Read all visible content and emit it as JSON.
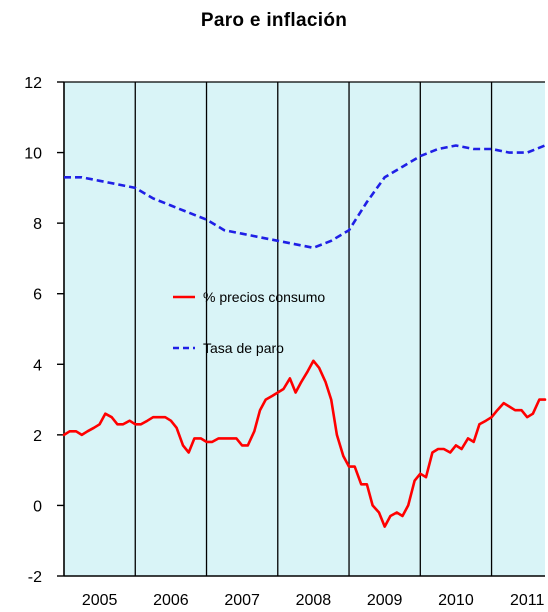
{
  "chart_data": {
    "type": "line",
    "title": "Paro e inflación",
    "xlabel": "",
    "ylabel": "",
    "x_tick_labels": [
      "2005",
      "2006",
      "2007",
      "2008",
      "2009",
      "2010",
      "2011"
    ],
    "y_tick_labels": [
      "-2",
      "0",
      "2",
      "4",
      "6",
      "8",
      "10",
      "12"
    ],
    "xlim": [
      2005.0,
      2011.75
    ],
    "ylim": [
      -2,
      12
    ],
    "grid": "vertical at each year",
    "plot_background": "#d9f4f7",
    "legend": {
      "placement": "center",
      "entries": [
        {
          "label": "% precios consumo",
          "color": "#ff0000",
          "style": "solid"
        },
        {
          "label": "Tasa de paro",
          "color": "#1f1fe6",
          "style": "dashed"
        }
      ]
    },
    "series": [
      {
        "name": "% precios consumo",
        "color": "#ff0000",
        "style": "solid",
        "x": [
          2005.0,
          2005.08,
          2005.17,
          2005.25,
          2005.33,
          2005.42,
          2005.5,
          2005.58,
          2005.67,
          2005.75,
          2005.83,
          2005.92,
          2006.0,
          2006.08,
          2006.17,
          2006.25,
          2006.33,
          2006.42,
          2006.5,
          2006.58,
          2006.67,
          2006.75,
          2006.83,
          2006.92,
          2007.0,
          2007.08,
          2007.17,
          2007.25,
          2007.33,
          2007.42,
          2007.5,
          2007.58,
          2007.67,
          2007.75,
          2007.83,
          2007.92,
          2008.0,
          2008.08,
          2008.17,
          2008.25,
          2008.33,
          2008.42,
          2008.5,
          2008.58,
          2008.67,
          2008.75,
          2008.83,
          2008.92,
          2009.0,
          2009.08,
          2009.17,
          2009.25,
          2009.33,
          2009.42,
          2009.5,
          2009.58,
          2009.67,
          2009.75,
          2009.83,
          2009.92,
          2010.0,
          2010.08,
          2010.17,
          2010.25,
          2010.33,
          2010.42,
          2010.5,
          2010.58,
          2010.67,
          2010.75,
          2010.83,
          2010.92,
          2011.0,
          2011.08,
          2011.17,
          2011.25,
          2011.33,
          2011.42,
          2011.5,
          2011.58,
          2011.67,
          2011.75
        ],
        "values": [
          2.0,
          2.1,
          2.1,
          2.0,
          2.1,
          2.2,
          2.3,
          2.6,
          2.5,
          2.3,
          2.3,
          2.4,
          2.3,
          2.3,
          2.4,
          2.5,
          2.5,
          2.5,
          2.4,
          2.2,
          1.7,
          1.5,
          1.9,
          1.9,
          1.8,
          1.8,
          1.9,
          1.9,
          1.9,
          1.9,
          1.7,
          1.7,
          2.1,
          2.7,
          3.0,
          3.1,
          3.2,
          3.3,
          3.6,
          3.2,
          3.5,
          3.8,
          4.1,
          3.9,
          3.5,
          3.0,
          2.0,
          1.4,
          1.1,
          1.1,
          0.6,
          0.6,
          0.0,
          -0.2,
          -0.6,
          -0.3,
          -0.2,
          -0.3,
          0.0,
          0.7,
          0.9,
          0.8,
          1.5,
          1.6,
          1.6,
          1.5,
          1.7,
          1.6,
          1.9,
          1.8,
          2.3,
          2.4,
          2.5,
          2.7,
          2.9,
          2.8,
          2.7,
          2.7,
          2.5,
          2.6,
          3.0,
          3.0
        ]
      },
      {
        "name": "Tasa de paro",
        "color": "#1f1fe6",
        "style": "dashed",
        "x": [
          2005.0,
          2005.25,
          2005.5,
          2005.75,
          2006.0,
          2006.25,
          2006.5,
          2006.75,
          2007.0,
          2007.25,
          2007.5,
          2007.75,
          2008.0,
          2008.25,
          2008.5,
          2008.75,
          2009.0,
          2009.25,
          2009.5,
          2009.75,
          2010.0,
          2010.25,
          2010.5,
          2010.75,
          2011.0,
          2011.25,
          2011.5,
          2011.75
        ],
        "values": [
          9.3,
          9.3,
          9.2,
          9.1,
          9.0,
          8.7,
          8.5,
          8.3,
          8.1,
          7.8,
          7.7,
          7.6,
          7.5,
          7.4,
          7.3,
          7.5,
          7.8,
          8.6,
          9.3,
          9.6,
          9.9,
          10.1,
          10.2,
          10.1,
          10.1,
          10.0,
          10.0,
          10.2
        ]
      }
    ]
  }
}
